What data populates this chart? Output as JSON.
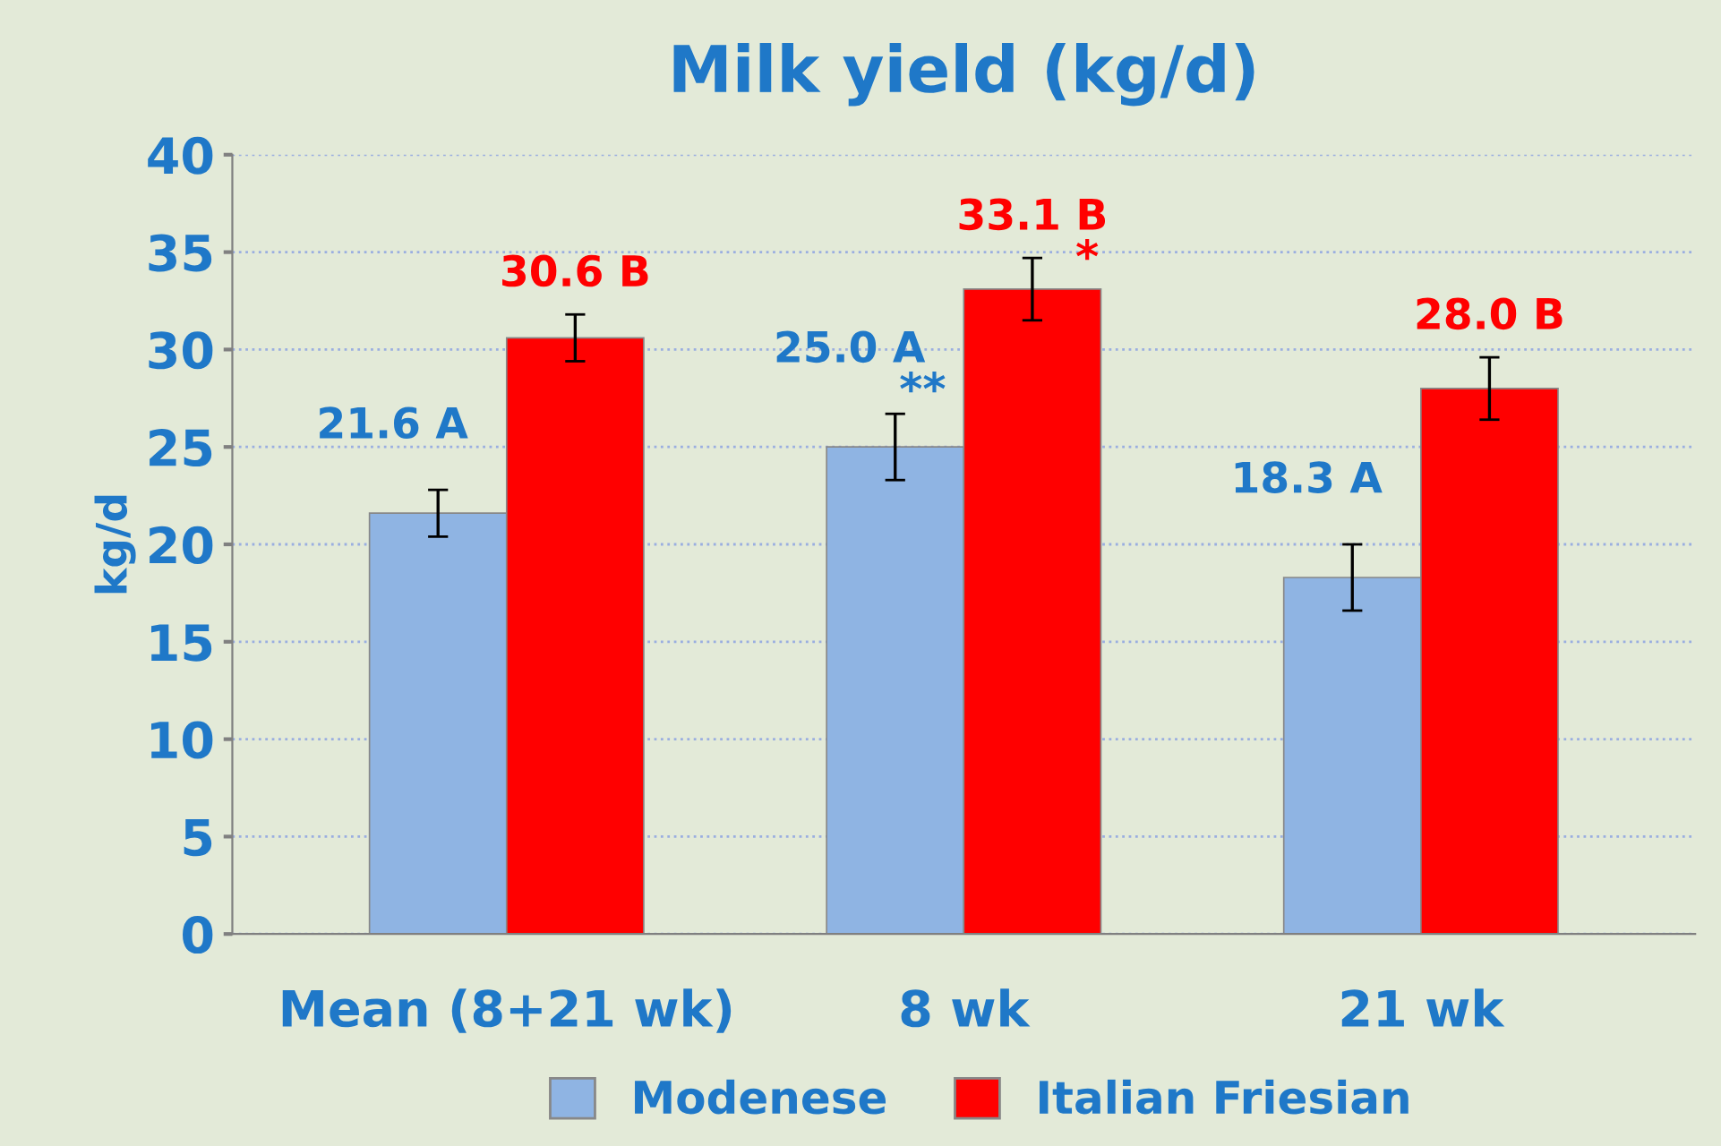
{
  "chart_data": {
    "type": "bar",
    "title": "Milk yield (kg/d)",
    "ylabel": "kg/d",
    "categories": [
      "Mean (8+21 wk)",
      "8 wk",
      "21 wk"
    ],
    "series": [
      {
        "name": "Modenese",
        "color": "#8fb4e3",
        "values": [
          21.6,
          25.0,
          18.3
        ],
        "errors": [
          1.2,
          1.7,
          1.7
        ],
        "value_labels": [
          "21.6 A",
          "25.0 A",
          "18.3 A"
        ]
      },
      {
        "name": "Italian Friesian",
        "color": "#ff0000",
        "values": [
          30.6,
          33.1,
          28.0
        ],
        "errors": [
          1.2,
          1.6,
          1.6
        ],
        "value_labels": [
          "30.6 B",
          "33.1 B",
          "28.0 B"
        ]
      }
    ],
    "annotations": [
      {
        "text": "**",
        "x": "8 wk",
        "y": 25.0
      },
      {
        "text": "*",
        "x": "8 wk",
        "y": 33.1
      }
    ],
    "ylim": [
      0,
      40
    ],
    "yticks": [
      0,
      5,
      10,
      15,
      20,
      25,
      30,
      35,
      40
    ],
    "grid": "y",
    "legend": "bottom"
  }
}
